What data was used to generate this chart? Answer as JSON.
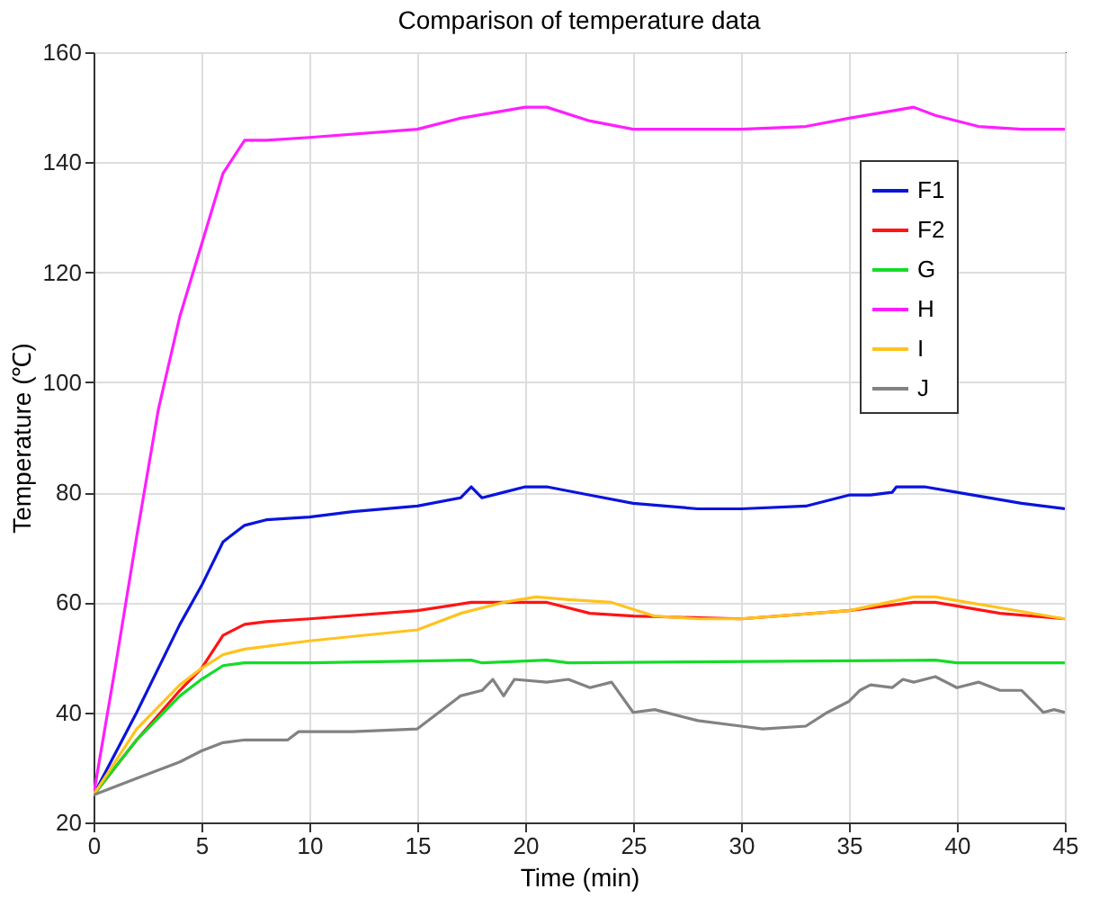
{
  "chart_data": {
    "type": "line",
    "title": "Comparison of temperature data",
    "xlabel": "Time (min)",
    "ylabel": "Temperature (℃)",
    "xlim": [
      0,
      45
    ],
    "xticks": [
      0,
      5,
      10,
      15,
      20,
      25,
      30,
      35,
      40,
      45
    ],
    "ylim": [
      20,
      160
    ],
    "yticks": [
      20,
      40,
      60,
      80,
      100,
      120,
      140,
      160
    ],
    "grid": true,
    "legend": "top right",
    "line_style": "solid",
    "marker": "none",
    "series": [
      {
        "name": "F1",
        "color": "#0a14dc",
        "x": [
          0,
          2,
          4,
          5,
          6,
          7,
          8,
          10,
          12,
          15,
          17,
          17.5,
          18,
          19,
          20,
          21,
          23,
          25,
          28,
          30,
          33,
          35,
          36,
          37,
          37.2,
          38.5,
          40,
          43,
          45
        ],
        "values": [
          25,
          40,
          56,
          63,
          71,
          74,
          75,
          75.5,
          76.5,
          77.5,
          79,
          81,
          79,
          80,
          81,
          81,
          79.5,
          78,
          77,
          77,
          77.5,
          79.5,
          79.5,
          80,
          81,
          81,
          80,
          78,
          77
        ]
      },
      {
        "name": "F2",
        "color": "#ff1414",
        "x": [
          0,
          2,
          4,
          5,
          6,
          7,
          8,
          10,
          15,
          17.5,
          20,
          21,
          23,
          25,
          30,
          35,
          38,
          39,
          42,
          45
        ],
        "values": [
          25,
          35,
          44,
          48,
          54,
          56,
          56.5,
          57,
          58.5,
          60,
          60,
          60,
          58,
          57.5,
          57,
          58.5,
          60,
          60,
          58,
          57
        ]
      },
      {
        "name": "G",
        "color": "#14dc28",
        "x": [
          0,
          2,
          4,
          5,
          6,
          7,
          10,
          17.5,
          18,
          21,
          22,
          39,
          40,
          45
        ],
        "values": [
          25,
          35,
          43,
          46,
          48.5,
          49,
          49,
          49.5,
          49,
          49.5,
          49,
          49.5,
          49,
          49
        ]
      },
      {
        "name": "H",
        "color": "#ff1eff",
        "x": [
          0,
          1,
          2,
          3,
          4,
          5,
          6,
          7,
          8,
          10,
          15,
          17,
          20,
          21,
          23,
          25,
          30,
          33,
          35,
          38,
          39,
          41,
          43,
          45
        ],
        "values": [
          25,
          48,
          72,
          95,
          112,
          125,
          138,
          144,
          144,
          144.5,
          146,
          148,
          150,
          150,
          147.5,
          146,
          146,
          146.5,
          148,
          150,
          148.5,
          146.5,
          146,
          146
        ]
      },
      {
        "name": "I",
        "color": "#ffc31e",
        "x": [
          0,
          2,
          4,
          5,
          6,
          7,
          8,
          10,
          15,
          17,
          19,
          20.5,
          22,
          24,
          26,
          28,
          30,
          35,
          38,
          39,
          42,
          45
        ],
        "values": [
          25,
          37,
          45,
          48,
          50.5,
          51.5,
          52,
          53,
          55,
          58,
          60,
          61,
          60.5,
          60,
          57.5,
          57,
          57,
          58.5,
          61,
          61,
          59,
          57
        ]
      },
      {
        "name": "J",
        "color": "#828282",
        "x": [
          0,
          2,
          4,
          5,
          6,
          7,
          9,
          9.5,
          12,
          15,
          16,
          17,
          18,
          18.5,
          19,
          19.5,
          21,
          22,
          23,
          24,
          25,
          26,
          28,
          30,
          31,
          33,
          34,
          35,
          35.5,
          36,
          37,
          37.5,
          38,
          39,
          40,
          41,
          42,
          43,
          43.5,
          44,
          44.5,
          45
        ],
        "values": [
          25,
          28,
          31,
          33,
          34.5,
          35,
          35,
          36.5,
          36.5,
          37,
          40,
          43,
          44,
          46,
          43,
          46,
          45.5,
          46,
          44.5,
          45.5,
          40,
          40.5,
          38.5,
          37.5,
          37,
          37.5,
          40,
          42,
          44,
          45,
          44.5,
          46,
          45.5,
          46.5,
          44.5,
          45.5,
          44,
          44,
          42,
          40,
          40.5,
          40
        ]
      }
    ]
  }
}
